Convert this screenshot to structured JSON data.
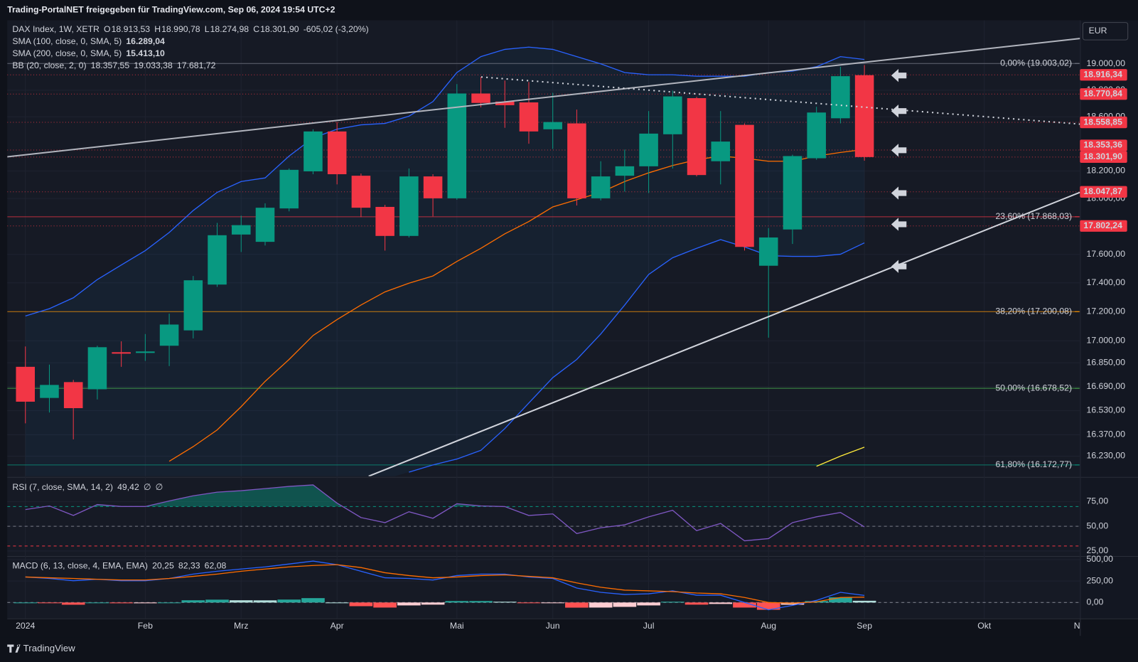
{
  "header": "Trading-PortalNET freigegeben für TradingView.com, Sep 06, 2024 19:54 UTC+2",
  "currency": "EUR",
  "brand": "TradingView",
  "chart_data": [
    {
      "type": "candlestick",
      "log": true,
      "up_color": "#089981",
      "down_color": "#f23645",
      "legend": [
        {
          "title": "DAX Index, 1W, XETR",
          "items": [
            {
              "prefix": "O",
              "text": "18.913,53",
              "color": "#f23645"
            },
            {
              "prefix": "H",
              "text": "18.990,78",
              "color": "#f23645"
            },
            {
              "prefix": "L",
              "text": "18.274,98",
              "color": "#f23645"
            },
            {
              "prefix": "C",
              "text": "18.301,90",
              "color": "#f23645"
            },
            {
              "text": "-605,02 (-3,20%)",
              "color": "#f23645"
            }
          ]
        },
        {
          "title": "SMA (100, close, 0, SMA, 5)",
          "items": [
            {
              "text": "16.289,04",
              "color": "#ffeb3b"
            }
          ]
        },
        {
          "title": "SMA (200, close, 0, SMA, 5)",
          "items": [
            {
              "text": "15.413,10",
              "color": "#ffeb3b"
            }
          ]
        },
        {
          "title": "BB (20, close, 2, 0)",
          "items": [
            {
              "text": "18.357,55",
              "color": "#ff6d00"
            },
            {
              "text": "19.033,38",
              "color": "#2962ff"
            },
            {
              "text": "17.681,72",
              "color": "#2962ff"
            }
          ]
        }
      ],
      "categories": [
        "2024",
        null,
        null,
        null,
        null,
        "Feb",
        null,
        null,
        null,
        "Mrz",
        null,
        null,
        null,
        "Apr",
        null,
        null,
        null,
        null,
        "Mai",
        null,
        null,
        null,
        "Jun",
        null,
        null,
        null,
        "Jul",
        null,
        null,
        null,
        null,
        "Aug",
        null,
        null,
        null,
        "Sep",
        null,
        null,
        null,
        null,
        "Okt",
        null,
        null,
        null,
        "N"
      ],
      "open": [
        16823,
        16614,
        16720,
        16672,
        16922,
        16917,
        16966,
        17071,
        17388,
        17741,
        17689,
        17928,
        18197,
        18491,
        18165,
        17939,
        17731,
        18160,
        18001,
        18775,
        18714,
        18708,
        18507,
        18551,
        18001,
        18165,
        18234,
        18470,
        18740,
        18271,
        18540,
        17520,
        17777,
        18293,
        18589,
        18913.53,
        null,
        null,
        null,
        null,
        null,
        null,
        null,
        null,
        null
      ],
      "high": [
        16961,
        16838,
        16735,
        16966,
        16996,
        17046,
        17186,
        17448,
        17824,
        17876,
        17965,
        18218,
        18507,
        18561,
        18181,
        17954,
        18218,
        18176,
        18846,
        18901,
        18873,
        18862,
        18780,
        18654,
        18271,
        18357,
        18643,
        18797,
        18750,
        18643,
        18551,
        17787,
        18319,
        18675,
        18978,
        18990.78,
        null,
        null,
        null,
        null,
        null,
        null,
        null,
        null,
        null
      ],
      "low": [
        16445,
        16517,
        16340,
        16604,
        16823,
        16863,
        16828,
        17016,
        17372,
        17617,
        17663,
        17907,
        18176,
        18102,
        17865,
        17627,
        17720,
        17871,
        17991,
        18671,
        18518,
        18400,
        18362,
        17949,
        17986,
        18049,
        18039,
        18218,
        18160,
        18102,
        17627,
        17021,
        17674,
        18282,
        18551,
        18274.98,
        null,
        null,
        null,
        null,
        null,
        null,
        null,
        null,
        null
      ],
      "close": [
        16589,
        16701,
        16546,
        16956,
        16912,
        16927,
        17111,
        17418,
        17736,
        17808,
        17933,
        18208,
        18491,
        18176,
        17933,
        17731,
        18160,
        18001,
        18775,
        18704,
        18687,
        18491,
        18561,
        18001,
        18160,
        18234,
        18475,
        18753,
        18170,
        18416,
        17653,
        17720,
        18309,
        18632,
        18906,
        18301.9,
        null,
        null,
        null,
        null,
        null,
        null,
        null,
        null,
        null
      ],
      "overlays": [
        {
          "color": "#2962ff",
          "values": [
            17170,
            17220,
            17296,
            17423,
            17525,
            17627,
            17756,
            17913,
            18044,
            18123,
            18149,
            18309,
            18443,
            18508,
            18540,
            18551,
            18605,
            18714,
            18934,
            19055,
            19111,
            19128,
            19111,
            19055,
            19000,
            18934,
            18917,
            18917,
            18906,
            18906,
            18906,
            18934,
            18945,
            18978,
            19055,
            19033.38,
            null,
            null,
            null,
            null,
            null,
            null,
            null,
            null,
            null
          ]
        },
        {
          "color": "#2962ff",
          "values": [
            null,
            null,
            null,
            null,
            null,
            null,
            null,
            null,
            null,
            null,
            null,
            null,
            null,
            null,
            null,
            null,
            16126,
            16173,
            16211,
            16268,
            16411,
            16580,
            16750,
            16873,
            17046,
            17246,
            17459,
            17576,
            17643,
            17705,
            17653,
            17591,
            17586,
            17586,
            17601,
            17681.72,
            null,
            null,
            null,
            null,
            null,
            null,
            null,
            null,
            null
          ]
        },
        {
          "color": "#ff6d00",
          "values": [
            null,
            null,
            null,
            null,
            null,
            null,
            16197,
            16292,
            16402,
            16556,
            16725,
            16873,
            17036,
            17145,
            17246,
            17337,
            17398,
            17448,
            17550,
            17643,
            17746,
            17834,
            17939,
            17991,
            18044,
            18123,
            18186,
            18240,
            18282,
            18309,
            18293,
            18271,
            18271,
            18309,
            18336,
            18357.55,
            null,
            null,
            null,
            null,
            null,
            null,
            null,
            null,
            null
          ]
        },
        {
          "color": "#ffeb3b",
          "values": [
            null,
            null,
            null,
            null,
            null,
            null,
            null,
            null,
            null,
            null,
            null,
            null,
            null,
            null,
            null,
            null,
            null,
            null,
            null,
            null,
            null,
            null,
            null,
            null,
            null,
            null,
            null,
            null,
            null,
            null,
            null,
            null,
            null,
            16164,
            16230,
            16289.04,
            null,
            null,
            null,
            null,
            null,
            null,
            null,
            null,
            null
          ]
        }
      ],
      "fib": [
        {
          "value": 19003.02,
          "label": "0,00% (19.003,02)",
          "color": "#787b86"
        },
        {
          "value": 17868.03,
          "label": "23,60% (17.868,03)",
          "color": "#f23645"
        },
        {
          "value": 17200.08,
          "label": "38,20% (17.200,08)",
          "color": "#ff9800"
        },
        {
          "value": 16678.52,
          "label": "50,00% (16.678,52)",
          "color": "#4caf50"
        },
        {
          "value": 16172.77,
          "label": "61,80% (16.172,77)",
          "color": "#089981"
        }
      ],
      "levels": [
        {
          "value": 18916.34,
          "label": "18.916,34"
        },
        {
          "value": 18770.84,
          "label": "18.770,84"
        },
        {
          "value": 18558.85,
          "label": "18.558,85"
        },
        {
          "value": 18353.36,
          "label": "18.353,36"
        },
        {
          "value": 18301.9,
          "label": "18.301,90"
        },
        {
          "value": 18047.87,
          "label": "18.047,87"
        },
        {
          "value": 17802.24,
          "label": "17.802,24"
        }
      ],
      "ylim": [
        16100,
        19335
      ],
      "yticks": [
        {
          "value": 19000,
          "label": "19.000,00"
        },
        {
          "value": 18800,
          "label": "18.800,00"
        },
        {
          "value": 18600,
          "label": "18.600,00"
        },
        {
          "value": 18200,
          "label": "18.200,00"
        },
        {
          "value": 18000,
          "label": "18.000,00"
        },
        {
          "value": 17600,
          "label": "17.600,00"
        },
        {
          "value": 17400,
          "label": "17.400,00"
        },
        {
          "value": 17200,
          "label": "17.200,00"
        },
        {
          "value": 17000,
          "label": "17.000,00"
        },
        {
          "value": 16850,
          "label": "16.850,00"
        },
        {
          "value": 16690,
          "label": "16.690,00"
        },
        {
          "value": 16530,
          "label": "16.530,00"
        },
        {
          "value": 16370,
          "label": "16.370,00"
        },
        {
          "value": 16230,
          "label": "16.230,00"
        }
      ],
      "grid": true
    },
    {
      "type": "line",
      "legend": [
        {
          "title": "RSI (7, close, SMA, 14, 2)",
          "items": [
            {
              "text": "49,42",
              "color": "#7e57c2"
            },
            {
              "text": "∅",
              "color": "#d1d4dc"
            },
            {
              "text": "∅",
              "color": "#d1d4dc"
            }
          ]
        }
      ],
      "color": "#7e57c2",
      "values": [
        66.9,
        70.6,
        61,
        72,
        70,
        70,
        75.7,
        80.9,
        84.6,
        86,
        88.2,
        90.4,
        91.9,
        73.5,
        58.8,
        53.7,
        64.7,
        58.1,
        72.8,
        70.6,
        69.9,
        61,
        62.5,
        42.6,
        48.5,
        51.5,
        59.6,
        66.2,
        45.6,
        52.9,
        35.3,
        37.5,
        53.7,
        59.6,
        64,
        49.42,
        null,
        null,
        null,
        null,
        null,
        null,
        null,
        null,
        null
      ],
      "levels": [
        {
          "value": 70,
          "color": "#089981"
        },
        {
          "value": 50,
          "color": "#787b86"
        },
        {
          "value": 30,
          "color": "#f23645"
        }
      ],
      "ylim": [
        20.6,
        97.8
      ],
      "yticks": [
        {
          "value": 75,
          "label": "75,00"
        },
        {
          "value": 50,
          "label": "50,00"
        },
        {
          "value": 25,
          "label": "25,00"
        }
      ]
    },
    {
      "type": "macd",
      "legend": [
        {
          "title": "MACD (6, 13, close, 4, EMA, EMA)",
          "items": [
            {
              "text": "20,25",
              "color": "#26a69a"
            },
            {
              "text": "82,33",
              "color": "#2962ff"
            },
            {
              "text": "62,08",
              "color": "#ff6d00"
            }
          ]
        }
      ],
      "histogram": [
        0,
        -8,
        -26,
        0,
        -9,
        -9,
        0,
        26,
        33,
        26,
        25,
        34,
        51,
        0,
        -43,
        -59,
        -34,
        -25,
        17,
        17,
        9,
        -8,
        -8,
        -60,
        -59,
        -51,
        -34,
        9,
        -25,
        -17,
        -59,
        -85,
        -26,
        17,
        60,
        20.25,
        null,
        null,
        null,
        null,
        null,
        null,
        null,
        null,
        null
      ],
      "lines": [
        {
          "color": "#2962ff",
          "values": [
            297,
            280,
            254,
            271,
            254,
            254,
            280,
            331,
            364,
            390,
            415,
            449,
            483,
            441,
            364,
            288,
            280,
            263,
            314,
            331,
            331,
            297,
            280,
            169,
            119,
            93,
            102,
            136,
            85,
            85,
            0,
            -85,
            -34,
            25,
            119,
            82.33,
            null,
            null,
            null,
            null,
            null,
            null,
            null,
            null,
            null
          ]
        },
        {
          "color": "#ff6d00",
          "values": [
            297,
            288,
            280,
            271,
            263,
            263,
            280,
            305,
            331,
            364,
            390,
            415,
            432,
            441,
            407,
            347,
            314,
            288,
            297,
            314,
            322,
            305,
            288,
            229,
            178,
            144,
            136,
            127,
            110,
            102,
            59,
            0,
            -8,
            8,
            59,
            62.08,
            null,
            null,
            null,
            null,
            null,
            null,
            null,
            null,
            null
          ]
        }
      ],
      "ylim": [
        -186,
        525
      ],
      "yticks": [
        {
          "value": 500,
          "label": "500,00"
        },
        {
          "value": 250,
          "label": "250,00"
        },
        {
          "value": 0,
          "label": "0,00"
        }
      ]
    }
  ]
}
